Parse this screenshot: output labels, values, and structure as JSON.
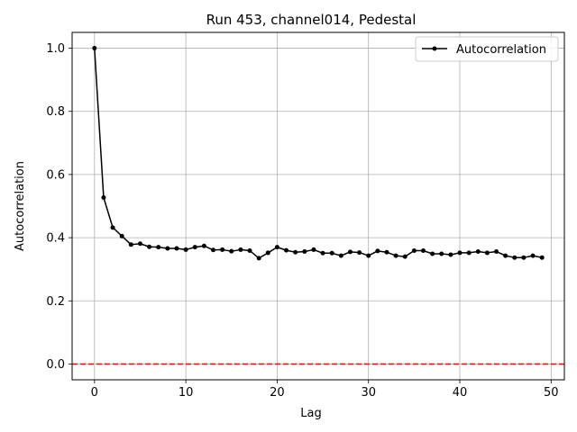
{
  "chart_data": {
    "type": "line",
    "title": "Run 453, channel014, Pedestal",
    "xlabel": "Lag",
    "ylabel": "Autocorrelation",
    "xlim": [
      -2.45,
      51.45
    ],
    "ylim": [
      -0.05,
      1.05
    ],
    "xticks": [
      0,
      10,
      20,
      30,
      40,
      50
    ],
    "yticks": [
      0.0,
      0.2,
      0.4,
      0.6,
      0.8,
      1.0
    ],
    "xtick_labels": [
      "0",
      "10",
      "20",
      "30",
      "40",
      "50"
    ],
    "ytick_labels": [
      "0.0",
      "0.2",
      "0.4",
      "0.6",
      "0.8",
      "1.0"
    ],
    "grid": true,
    "legend_position": "top-right",
    "series": [
      {
        "name": "Autocorrelation",
        "color": "#000000",
        "marker": "circle",
        "x": [
          0,
          1,
          2,
          3,
          4,
          5,
          6,
          7,
          8,
          9,
          10,
          11,
          12,
          13,
          14,
          15,
          16,
          17,
          18,
          19,
          20,
          21,
          22,
          23,
          24,
          25,
          26,
          27,
          28,
          29,
          30,
          31,
          32,
          33,
          34,
          35,
          36,
          37,
          38,
          39,
          40,
          41,
          42,
          43,
          44,
          45,
          46,
          47,
          48,
          49
        ],
        "y": [
          1.0,
          0.527,
          0.432,
          0.405,
          0.378,
          0.381,
          0.371,
          0.37,
          0.366,
          0.366,
          0.362,
          0.37,
          0.374,
          0.361,
          0.362,
          0.357,
          0.362,
          0.359,
          0.335,
          0.352,
          0.37,
          0.36,
          0.354,
          0.356,
          0.362,
          0.351,
          0.351,
          0.343,
          0.355,
          0.353,
          0.343,
          0.358,
          0.354,
          0.343,
          0.34,
          0.359,
          0.359,
          0.349,
          0.349,
          0.346,
          0.352,
          0.352,
          0.356,
          0.352,
          0.356,
          0.343,
          0.337,
          0.337,
          0.343,
          0.337
        ]
      }
    ],
    "reference_lines": [
      {
        "axis": "y",
        "value": 0.0,
        "color": "#ff0000",
        "style": "dashed"
      }
    ]
  }
}
